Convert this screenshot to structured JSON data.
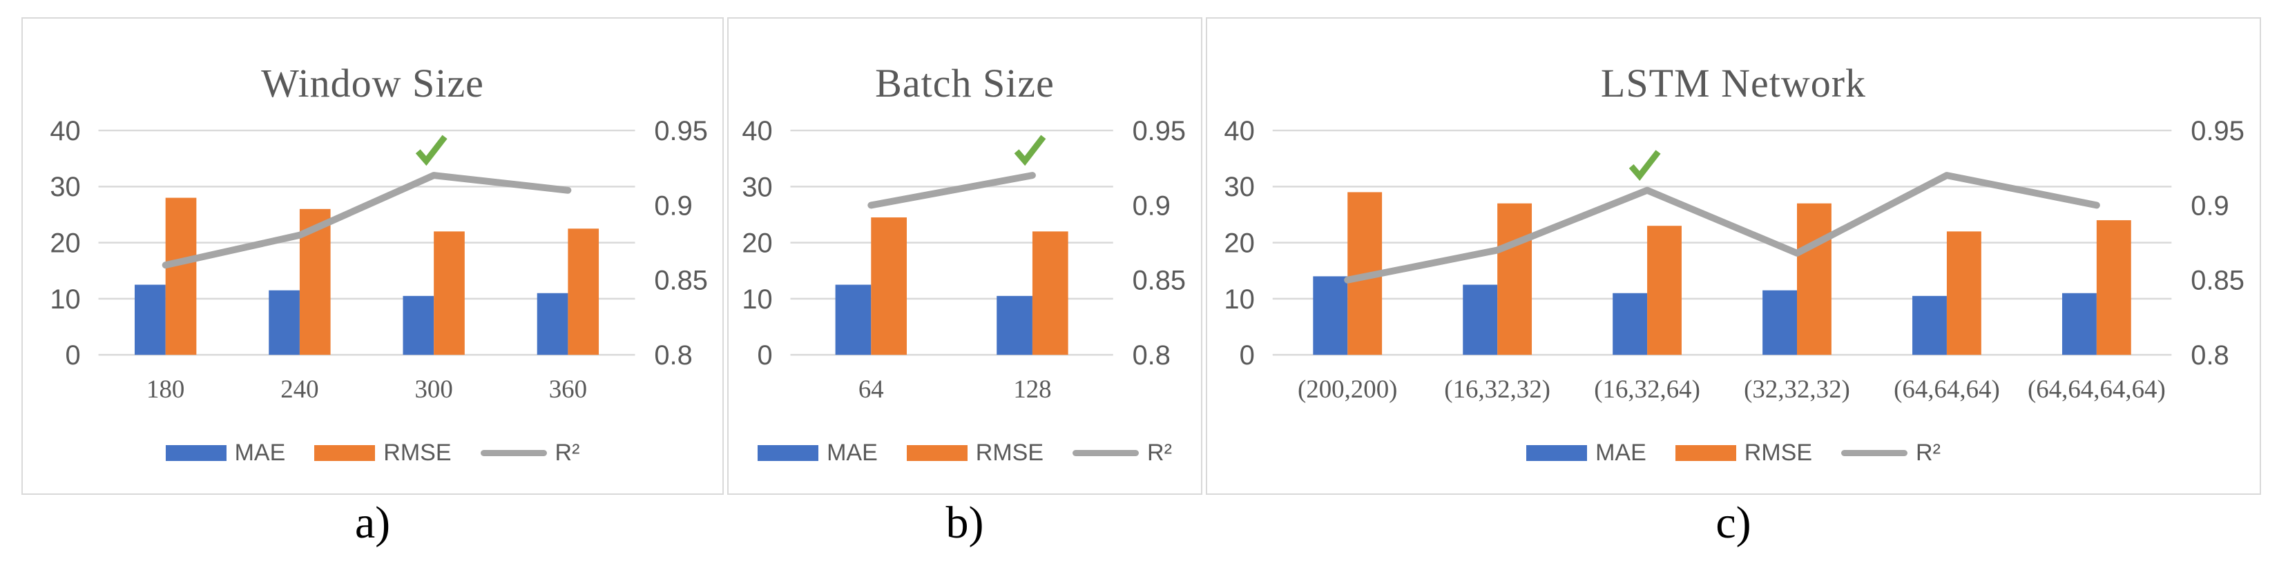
{
  "figure": {
    "description_note": "",
    "captions": [
      "a)",
      "b)",
      "c)"
    ]
  },
  "legend": {
    "mae": "MAE",
    "rmse": "RMSE",
    "r2": "R²"
  },
  "colors": {
    "mae": "#4472C4",
    "rmse": "#ED7D31",
    "r2": "#A5A5A5",
    "check": "#70AD47",
    "grid": "#D9D9D9",
    "text": "#595959",
    "border": "#D9D9D9",
    "caption": "#000000"
  },
  "axes": {
    "left_ticks": [
      "40",
      "30",
      "20",
      "10",
      "0"
    ],
    "right_ticks": [
      "0.95",
      "0.9",
      "0.85",
      "0.8"
    ],
    "left_range": [
      0,
      40
    ],
    "right_range": [
      0.8,
      0.95
    ],
    "grid": true
  },
  "chart_data": [
    {
      "type": "bar",
      "title": "Window Size",
      "categories": [
        "180",
        "240",
        "300",
        "360"
      ],
      "series": [
        {
          "name": "MAE",
          "kind": "bar",
          "axis": "left",
          "values": [
            12.5,
            11.5,
            10.5,
            11
          ]
        },
        {
          "name": "RMSE",
          "kind": "bar",
          "axis": "left",
          "values": [
            28,
            26,
            22,
            22.5
          ]
        },
        {
          "name": "R²",
          "kind": "line",
          "axis": "right",
          "values": [
            0.86,
            0.88,
            0.92,
            0.91
          ]
        }
      ],
      "left_ylim": [
        0,
        40
      ],
      "right_ylim": [
        0.8,
        0.95
      ],
      "best_index": 2,
      "best_marker": "green-checkmark",
      "legend_position": "bottom",
      "caption": "a)"
    },
    {
      "type": "bar",
      "title": "Batch Size",
      "categories": [
        "64",
        "128"
      ],
      "series": [
        {
          "name": "MAE",
          "kind": "bar",
          "axis": "left",
          "values": [
            12.5,
            10.5
          ]
        },
        {
          "name": "RMSE",
          "kind": "bar",
          "axis": "left",
          "values": [
            24.5,
            22
          ]
        },
        {
          "name": "R²",
          "kind": "line",
          "axis": "right",
          "values": [
            0.9,
            0.92
          ]
        }
      ],
      "left_ylim": [
        0,
        40
      ],
      "right_ylim": [
        0.8,
        0.95
      ],
      "best_index": 1,
      "best_marker": "green-checkmark",
      "legend_position": "bottom",
      "caption": "b)"
    },
    {
      "type": "bar",
      "title": "LSTM Network",
      "categories": [
        "(200,200)",
        "(16,32,32)",
        "(16,32,64)",
        "(32,32,32)",
        "(64,64,64)",
        "(64,64,64,64)"
      ],
      "series": [
        {
          "name": "MAE",
          "kind": "bar",
          "axis": "left",
          "values": [
            14,
            12.5,
            11,
            11.5,
            10.5,
            11
          ]
        },
        {
          "name": "RMSE",
          "kind": "bar",
          "axis": "left",
          "values": [
            29,
            27,
            23,
            27,
            22,
            24
          ]
        },
        {
          "name": "R²",
          "kind": "line",
          "axis": "right",
          "values": [
            0.85,
            0.87,
            0.91,
            0.868,
            0.92,
            0.9
          ]
        }
      ],
      "left_ylim": [
        0,
        40
      ],
      "right_ylim": [
        0.8,
        0.95
      ],
      "best_index": 2,
      "best_marker": "green-checkmark",
      "legend_position": "bottom",
      "caption": "c)"
    }
  ]
}
